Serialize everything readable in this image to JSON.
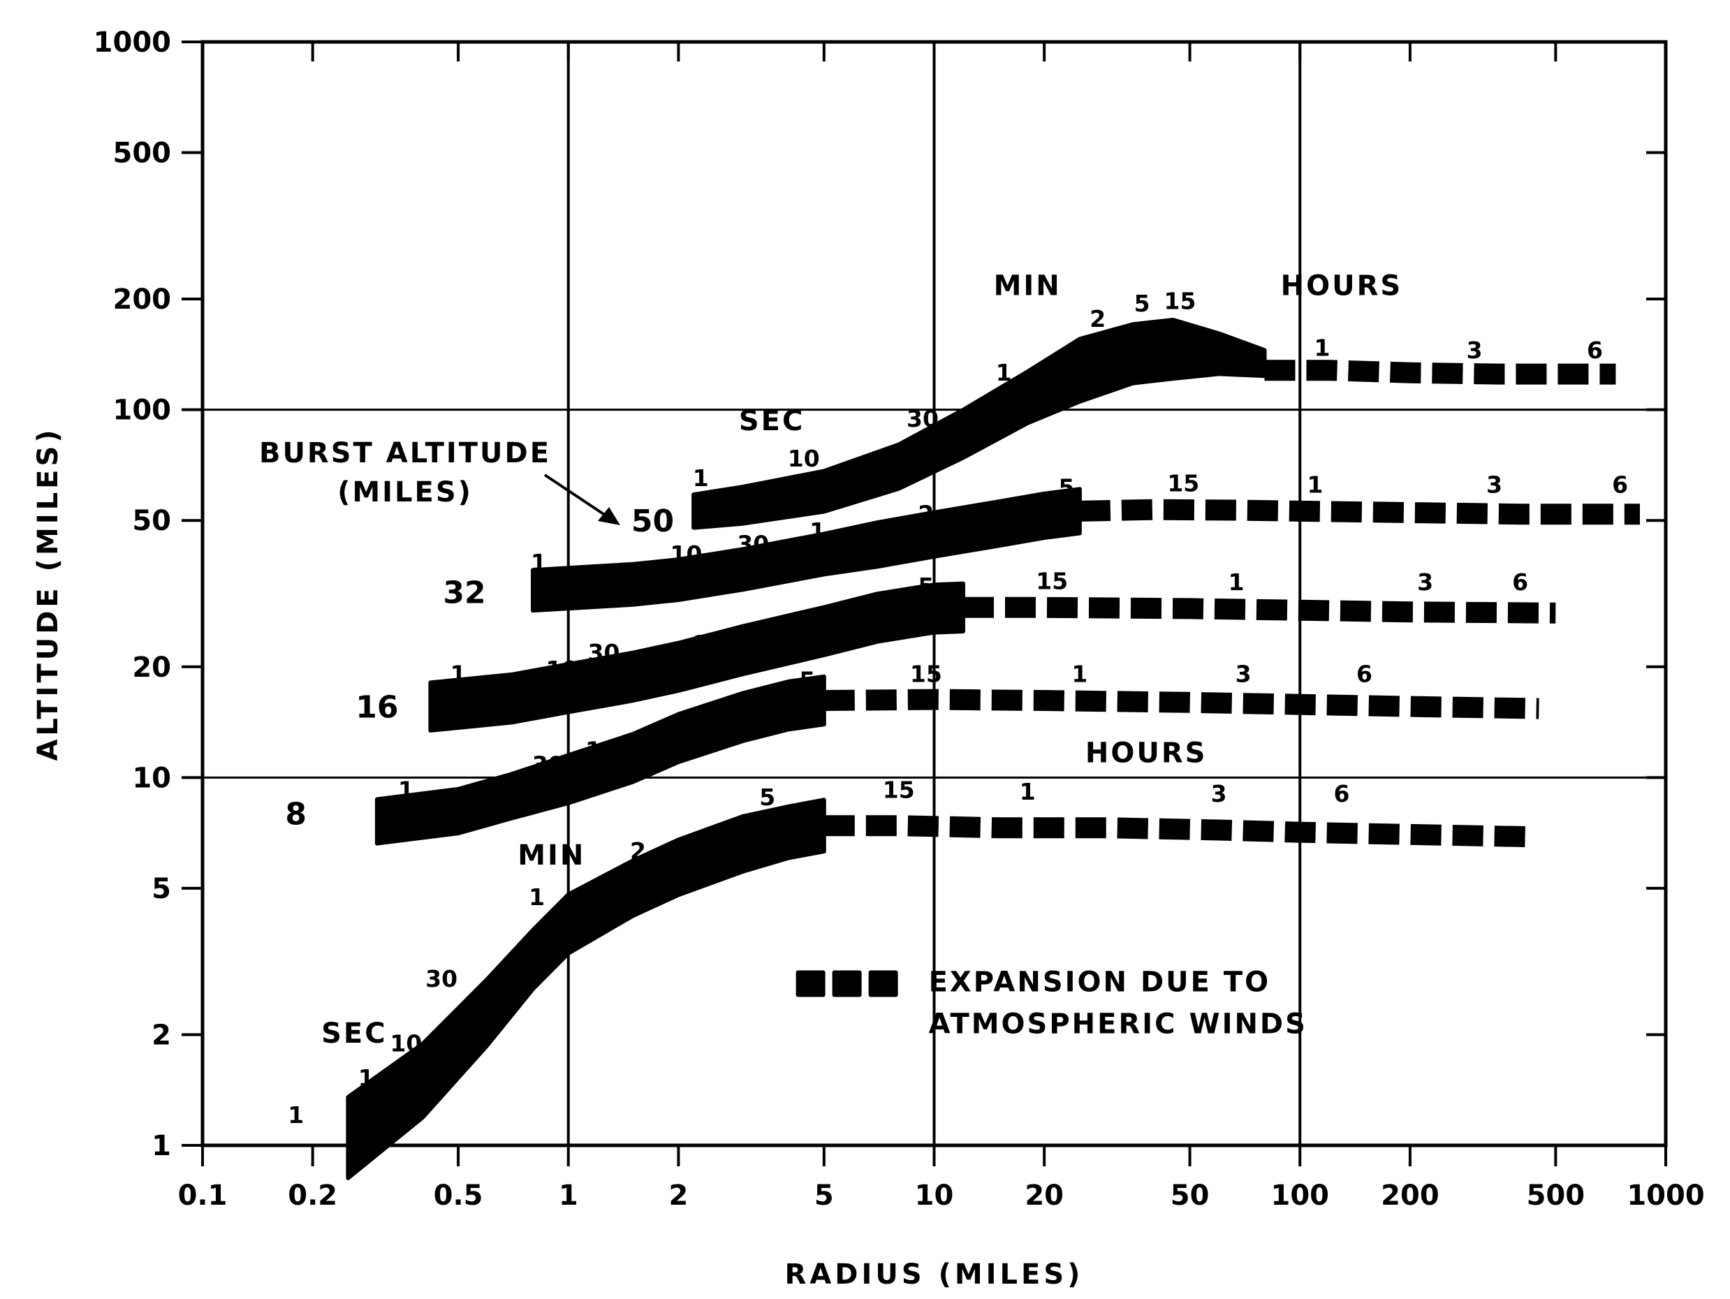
{
  "chart_data": {
    "type": "line",
    "xlabel": "RADIUS (MILES)",
    "ylabel": "ALTITUDE (MILES)",
    "xscale": "log",
    "yscale": "log",
    "xlim": [
      0.1,
      1000
    ],
    "ylim": [
      1,
      1000
    ],
    "x_ticks": [
      {
        "v": 0.1,
        "label": "0.1"
      },
      {
        "v": 0.2,
        "label": "0.2"
      },
      {
        "v": 0.5,
        "label": "0.5"
      },
      {
        "v": 1,
        "label": "1"
      },
      {
        "v": 2,
        "label": "2"
      },
      {
        "v": 5,
        "label": "5"
      },
      {
        "v": 10,
        "label": "10"
      },
      {
        "v": 20,
        "label": "20"
      },
      {
        "v": 50,
        "label": "50"
      },
      {
        "v": 100,
        "label": "100"
      },
      {
        "v": 200,
        "label": "200"
      },
      {
        "v": 500,
        "label": "500"
      },
      {
        "v": 1000,
        "label": "1000"
      }
    ],
    "y_ticks": [
      {
        "v": 1,
        "label": "1"
      },
      {
        "v": 2,
        "label": "2"
      },
      {
        "v": 5,
        "label": "5"
      },
      {
        "v": 10,
        "label": "10"
      },
      {
        "v": 20,
        "label": "20"
      },
      {
        "v": 50,
        "label": "50"
      },
      {
        "v": 100,
        "label": "100"
      },
      {
        "v": 200,
        "label": "200"
      },
      {
        "v": 500,
        "label": "500"
      },
      {
        "v": 1000,
        "label": "1000"
      }
    ],
    "grid_x": [
      1,
      10,
      100
    ],
    "grid_y": [
      10,
      100
    ],
    "legend": {
      "text_lines": [
        "EXPANSION DUE TO",
        "ATMOSPHERIC WINDS"
      ],
      "anchor": {
        "x": 45,
        "y": 2.0
      }
    },
    "burst_altitude_label": [
      "BURST ALTITUDE",
      "(MILES)"
    ],
    "series": [
      {
        "burst_altitude": "8",
        "label_at": {
          "x": 0.18,
          "y": 8
        },
        "solid": [
          [
            0.25,
            1.05
          ],
          [
            0.4,
            1.5
          ],
          [
            0.6,
            2.3
          ],
          [
            0.8,
            3.2
          ],
          [
            1.0,
            4.0
          ],
          [
            1.5,
            5.0
          ],
          [
            2.0,
            5.7
          ],
          [
            3.0,
            6.6
          ],
          [
            4.0,
            7.1
          ],
          [
            5.0,
            7.4
          ]
        ],
        "solid_width": [
          0.22,
          0.2,
          0.18,
          0.16,
          0.16,
          0.15,
          0.15,
          0.15,
          0.14,
          0.14
        ],
        "dashed": [
          [
            5.0,
            7.4
          ],
          [
            8,
            7.4
          ],
          [
            15,
            7.3
          ],
          [
            30,
            7.3
          ],
          [
            60,
            7.2
          ],
          [
            100,
            7.1
          ],
          [
            200,
            7.0
          ],
          [
            430,
            6.9
          ]
        ],
        "time_marks": [
          {
            "text": "1",
            "x": 0.18,
            "y": 1.15
          },
          {
            "text": "SEC",
            "x": 0.26,
            "y": 1.9
          },
          {
            "text": "1",
            "x": 0.28,
            "y": 1.45
          },
          {
            "text": "10",
            "x": 0.36,
            "y": 1.8
          },
          {
            "text": "30",
            "x": 0.45,
            "y": 2.7
          },
          {
            "text": "MIN",
            "x": 0.9,
            "y": 5.8
          },
          {
            "text": "1",
            "x": 0.82,
            "y": 4.5
          },
          {
            "text": "2",
            "x": 1.55,
            "y": 6.0
          },
          {
            "text": "5",
            "x": 3.5,
            "y": 8.4
          },
          {
            "text": "15",
            "x": 8,
            "y": 8.8
          },
          {
            "text": "HOURS",
            "x": 38,
            "y": 11.0
          },
          {
            "text": "1",
            "x": 18,
            "y": 8.7
          },
          {
            "text": "3",
            "x": 60,
            "y": 8.6
          },
          {
            "text": "6",
            "x": 130,
            "y": 8.6
          }
        ]
      },
      {
        "burst_altitude": "16",
        "label_at": {
          "x": 0.3,
          "y": 15.6
        },
        "solid": [
          [
            0.3,
            7.6
          ],
          [
            0.5,
            8.1
          ],
          [
            0.7,
            8.9
          ],
          [
            1.0,
            9.9
          ],
          [
            1.5,
            11.3
          ],
          [
            2.0,
            12.8
          ],
          [
            3.0,
            14.6
          ],
          [
            4.0,
            15.7
          ],
          [
            5.0,
            16.2
          ]
        ],
        "solid_width": [
          0.12,
          0.12,
          0.12,
          0.13,
          0.13,
          0.13,
          0.13,
          0.13,
          0.13
        ],
        "dashed": [
          [
            5.0,
            16.2
          ],
          [
            10,
            16.3
          ],
          [
            20,
            16.2
          ],
          [
            50,
            16.0
          ],
          [
            100,
            15.8
          ],
          [
            200,
            15.6
          ],
          [
            450,
            15.4
          ]
        ],
        "time_marks": [
          {
            "text": "1",
            "x": 0.36,
            "y": 8.8
          },
          {
            "text": "10",
            "x": 0.72,
            "y": 9.0
          },
          {
            "text": "30",
            "x": 0.88,
            "y": 10.3
          },
          {
            "text": "1",
            "x": 1.17,
            "y": 11.3
          },
          {
            "text": "2",
            "x": 2.0,
            "y": 13.0
          },
          {
            "text": "5",
            "x": 4.5,
            "y": 17.5
          },
          {
            "text": "15",
            "x": 9.5,
            "y": 18.2
          },
          {
            "text": "1",
            "x": 25,
            "y": 18.2
          },
          {
            "text": "3",
            "x": 70,
            "y": 18.2
          },
          {
            "text": "6",
            "x": 150,
            "y": 18.2
          }
        ]
      },
      {
        "burst_altitude": "32",
        "label_at": {
          "x": 0.52,
          "y": 32
        },
        "solid": [
          [
            0.42,
            15.6
          ],
          [
            0.7,
            16.4
          ],
          [
            1.0,
            17.5
          ],
          [
            1.5,
            18.8
          ],
          [
            2.0,
            20.0
          ],
          [
            3.0,
            22.2
          ],
          [
            5.0,
            25.0
          ],
          [
            7.0,
            27.2
          ],
          [
            10,
            28.8
          ],
          [
            12,
            29.0
          ]
        ],
        "solid_width": [
          0.13,
          0.13,
          0.13,
          0.13,
          0.13,
          0.13,
          0.13,
          0.13,
          0.13,
          0.13
        ],
        "dashed": [
          [
            12,
            29.0
          ],
          [
            20,
            29.0
          ],
          [
            50,
            28.8
          ],
          [
            100,
            28.5
          ],
          [
            200,
            28.2
          ],
          [
            500,
            28.0
          ]
        ],
        "time_marks": [
          {
            "text": "1",
            "x": 0.5,
            "y": 18.2
          },
          {
            "text": "10",
            "x": 0.96,
            "y": 18.7
          },
          {
            "text": "30",
            "x": 1.25,
            "y": 20.8
          },
          {
            "text": "1",
            "x": 2.3,
            "y": 22.0
          },
          {
            "text": "2",
            "x": 3.9,
            "y": 24.3
          },
          {
            "text": "5",
            "x": 9.5,
            "y": 31.5
          },
          {
            "text": "15",
            "x": 21,
            "y": 32.5
          },
          {
            "text": "1",
            "x": 67,
            "y": 32.3
          },
          {
            "text": "3",
            "x": 220,
            "y": 32.3
          },
          {
            "text": "6",
            "x": 400,
            "y": 32.3
          }
        ]
      },
      {
        "burst_altitude": "50",
        "label_at": {
          "x": 1.7,
          "y": 50
        },
        "solid": [
          [
            0.8,
            32.3
          ],
          [
            1.5,
            33.5
          ],
          [
            2.0,
            34.5
          ],
          [
            3.0,
            36.8
          ],
          [
            5.0,
            40.5
          ],
          [
            7.0,
            43.0
          ],
          [
            10,
            45.8
          ],
          [
            15,
            49.0
          ],
          [
            20,
            51.5
          ],
          [
            25,
            53.0
          ]
        ],
        "solid_width": [
          0.11,
          0.11,
          0.11,
          0.11,
          0.11,
          0.12,
          0.12,
          0.12,
          0.12,
          0.12
        ],
        "dashed": [
          [
            25,
            53.0
          ],
          [
            40,
            53.5
          ],
          [
            70,
            53.3
          ],
          [
            100,
            53.0
          ],
          [
            200,
            52.5
          ],
          [
            400,
            52.0
          ],
          [
            850,
            52.0
          ]
        ],
        "time_marks": [
          {
            "text": "1",
            "x": 0.83,
            "y": 36.5
          },
          {
            "text": "10",
            "x": 2.1,
            "y": 38.5
          },
          {
            "text": "30",
            "x": 3.2,
            "y": 41.0
          },
          {
            "text": "1",
            "x": 4.8,
            "y": 44.5
          },
          {
            "text": "2",
            "x": 9.5,
            "y": 49.5
          },
          {
            "text": "5",
            "x": 23,
            "y": 58.5
          },
          {
            "text": "15",
            "x": 48,
            "y": 60.0
          },
          {
            "text": "1",
            "x": 110,
            "y": 59.5
          },
          {
            "text": "3",
            "x": 340,
            "y": 59.5
          },
          {
            "text": "6",
            "x": 750,
            "y": 59.5
          }
        ]
      },
      {
        "burst_altitude": "",
        "solid": [
          [
            2.2,
            53.0
          ],
          [
            3.0,
            55.0
          ],
          [
            5.0,
            60.0
          ],
          [
            8.0,
            70.0
          ],
          [
            12,
            86.0
          ],
          [
            18,
            108
          ],
          [
            25,
            128
          ],
          [
            35,
            142
          ],
          [
            45,
            146
          ],
          [
            60,
            142
          ],
          [
            80,
            134
          ]
        ],
        "solid_width": [
          0.09,
          0.1,
          0.11,
          0.12,
          0.13,
          0.14,
          0.17,
          0.16,
          0.16,
          0.11,
          0.07
        ],
        "dashed": [
          [
            80,
            128
          ],
          [
            120,
            128
          ],
          [
            200,
            126
          ],
          [
            350,
            125
          ],
          [
            730,
            125
          ]
        ],
        "time_marks": [
          {
            "text": "SEC",
            "x": 3.6,
            "y": 88.0
          },
          {
            "text": "1",
            "x": 2.3,
            "y": 62.0
          },
          {
            "text": "10",
            "x": 4.4,
            "y": 70.0
          },
          {
            "text": "30",
            "x": 9.3,
            "y": 90.0
          },
          {
            "text": "MIN",
            "x": 18,
            "y": 205
          },
          {
            "text": "1",
            "x": 15.5,
            "y": 120
          },
          {
            "text": "2",
            "x": 28,
            "y": 168
          },
          {
            "text": "5",
            "x": 37,
            "y": 185
          },
          {
            "text": "15",
            "x": 47,
            "y": 188
          },
          {
            "text": "HOURS",
            "x": 130,
            "y": 205
          },
          {
            "text": "1",
            "x": 115,
            "y": 140
          },
          {
            "text": "3",
            "x": 300,
            "y": 138
          },
          {
            "text": "6",
            "x": 640,
            "y": 138
          }
        ]
      }
    ]
  }
}
